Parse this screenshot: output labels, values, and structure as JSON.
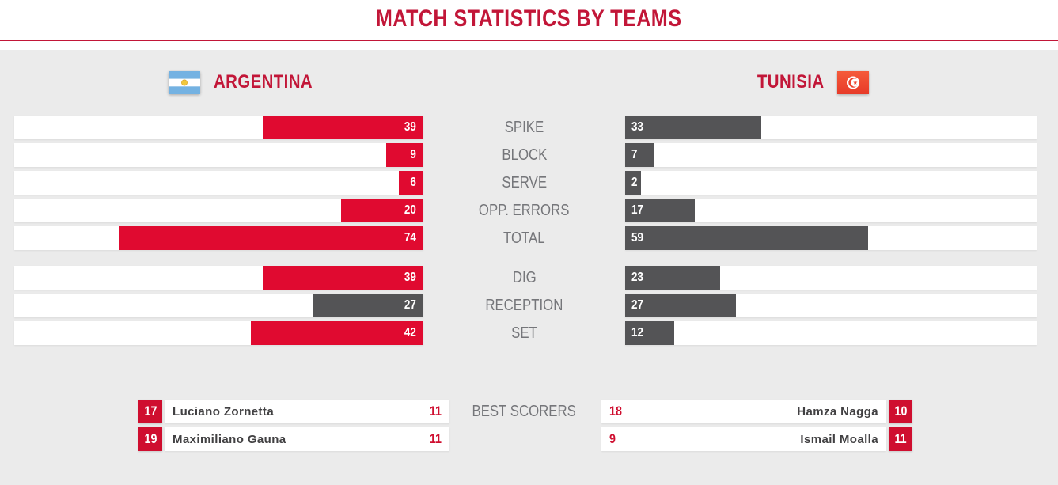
{
  "title": "MATCH STATISTICS BY TEAMS",
  "teams": {
    "home": {
      "name": "ARGENTINA"
    },
    "away": {
      "name": "TUNISIA"
    }
  },
  "chart_data": {
    "type": "bar",
    "orientation": "horizontal",
    "title": "MATCH STATISTICS BY TEAMS",
    "categories": [
      "SPIKE",
      "BLOCK",
      "SERVE",
      "OPP. ERRORS",
      "TOTAL",
      "DIG",
      "RECEPTION",
      "SET"
    ],
    "series": [
      {
        "name": "ARGENTINA",
        "values": [
          39,
          9,
          6,
          20,
          74,
          39,
          27,
          42
        ]
      },
      {
        "name": "TUNISIA",
        "values": [
          33,
          7,
          2,
          17,
          59,
          23,
          27,
          12
        ]
      }
    ],
    "gap_before_index": 5,
    "home_gray_categories": [
      "RECEPTION"
    ],
    "value_labels": "inside-bar-ends",
    "grid": false,
    "legend_position": "top-team-headers"
  },
  "best_scorers": {
    "label": "BEST SCORERS",
    "home": [
      {
        "number": "17",
        "name": "Luciano Zornetta",
        "points": "11"
      },
      {
        "number": "19",
        "name": "Maximiliano Gauna",
        "points": "11"
      }
    ],
    "away": [
      {
        "number": "10",
        "name": "Hamza Nagga",
        "points": "18"
      },
      {
        "number": "11",
        "name": "Ismail Moalla",
        "points": "9"
      }
    ]
  },
  "colors": {
    "accent_red": "#c21638",
    "bar_red": "#e00a30",
    "bar_gray": "#545456",
    "badge_red": "#cf0e2f",
    "label_gray": "#75767a",
    "name_dark": "#414042",
    "panel_bg": "#ebebeb",
    "track_bg": "#ffffff"
  }
}
